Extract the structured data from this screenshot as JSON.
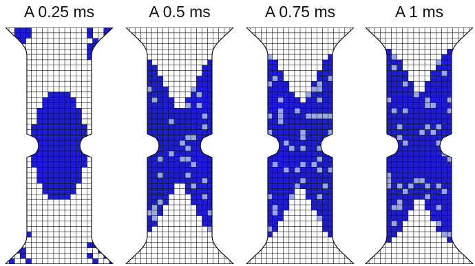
{
  "colors": {
    "plastic": "#1c1cd2",
    "plastic_light": "#9aa6ea",
    "mesh_line": "#111111",
    "background": "#ffffff"
  },
  "panels": [
    {
      "label": "A 0.25 ms",
      "stage": 0.25
    },
    {
      "label": "A 0.5 ms",
      "stage": 0.5
    },
    {
      "label": "A 0.75 ms",
      "stage": 0.75
    },
    {
      "label": "A 1 ms",
      "stage": 1.0
    }
  ]
}
